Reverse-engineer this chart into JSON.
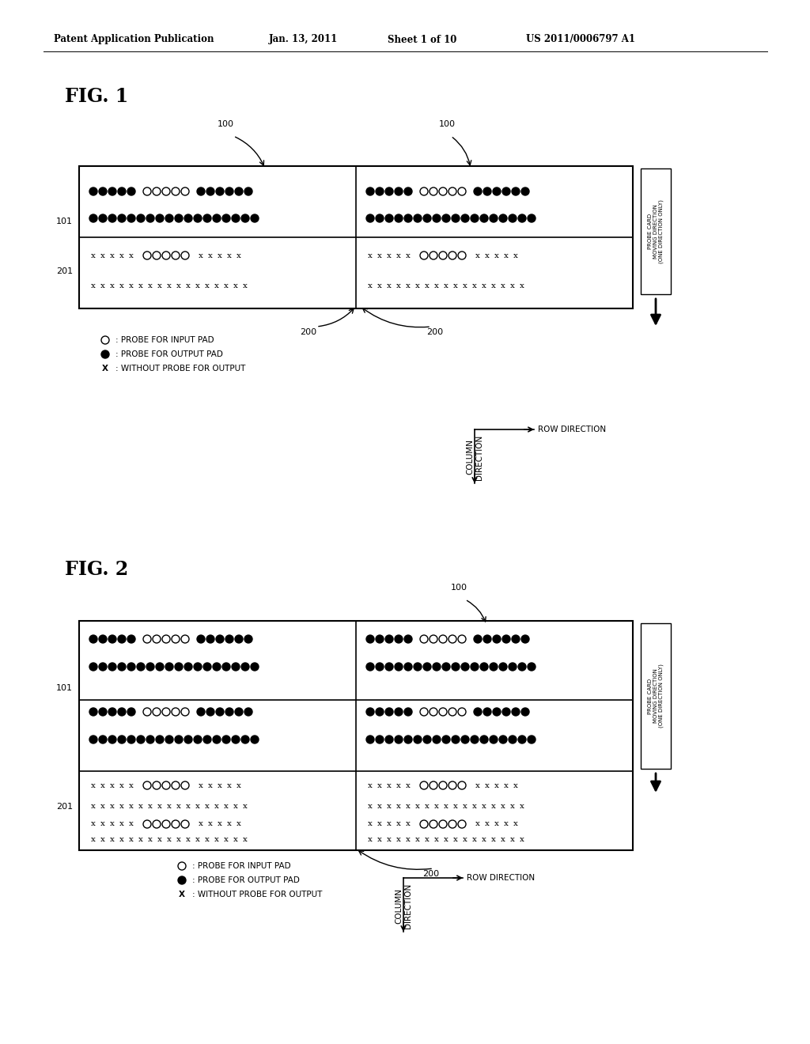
{
  "header": "Patent Application Publication",
  "header_date": "Jan. 13, 2011",
  "header_sheet": "Sheet 1 of 10",
  "header_patent": "US 2011/0006797 A1",
  "fig1_label": "FIG. 1",
  "fig2_label": "FIG. 2",
  "bg_color": "#ffffff",
  "probe_card_label": "PROBE CARD\nMOVING DIRECTION\n(ONE DIRECTION ONLY)",
  "row_direction": "ROW DIRECTION",
  "col_direction": "COLUMN\nDIRECTION",
  "label_100": "100",
  "label_101": "101",
  "label_200": "200",
  "label_201": "201"
}
